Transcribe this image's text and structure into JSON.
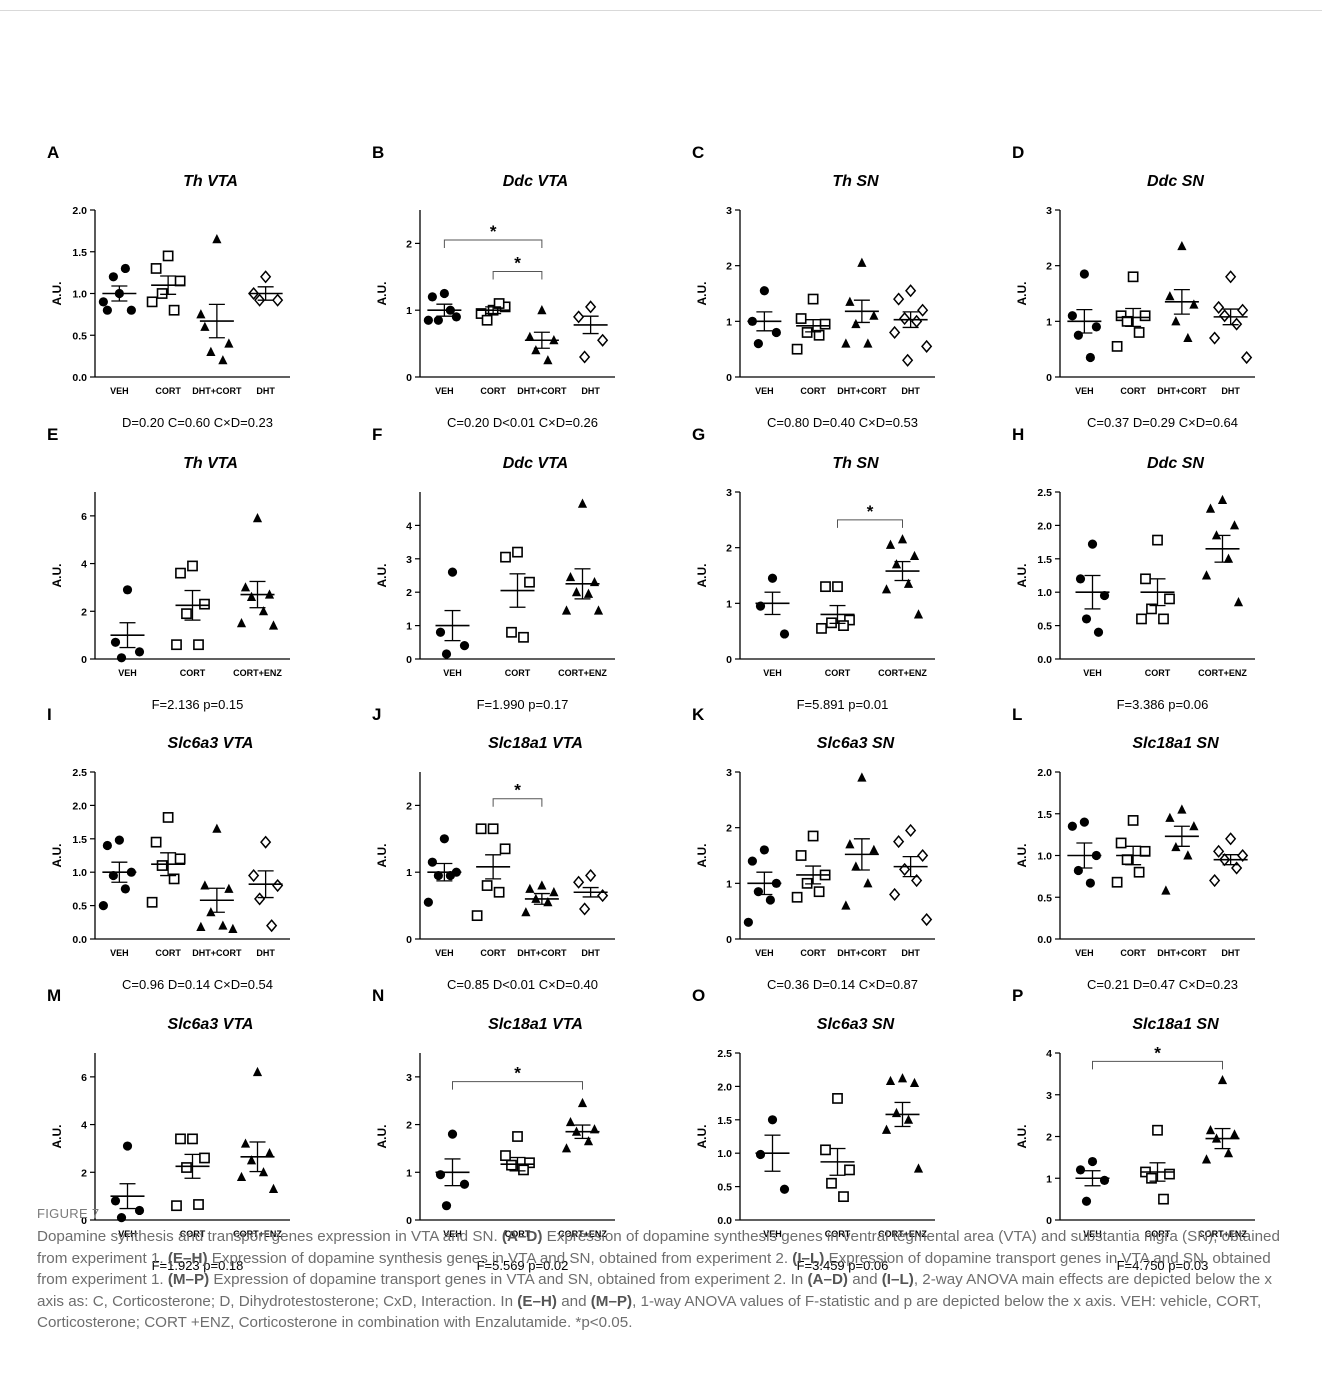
{
  "caption": {
    "label": "FIGURE 7",
    "parts": [
      {
        "t": "Dopamine synthesis and transport genes expression in VTA and SN. ",
        "b": false
      },
      {
        "t": "(A–D)",
        "b": true
      },
      {
        "t": " Expression of dopamine synthesis genes in ventral tegmental area (VTA) and substantia nigra (SN), obtained from experiment 1. ",
        "b": false
      },
      {
        "t": "(E–H)",
        "b": true
      },
      {
        "t": " Expression of dopamine synthesis genes in VTA and SN, obtained from experiment 2. ",
        "b": false
      },
      {
        "t": "(I–L)",
        "b": true
      },
      {
        "t": " Expression of dopamine transport genes in VTA and SN, obtained from experiment 1. ",
        "b": false
      },
      {
        "t": "(M–P)",
        "b": true
      },
      {
        "t": " Expression of dopamine transport genes in VTA and SN, obtained from experiment 2. In ",
        "b": false
      },
      {
        "t": "(A–D)",
        "b": true
      },
      {
        "t": " and ",
        "b": false
      },
      {
        "t": "(I–L)",
        "b": true
      },
      {
        "t": ", 2-way ANOVA main effects are depicted below the x axis as: C, Corticosterone; D, Dihydrotestosterone; CxD, Interaction. In ",
        "b": false
      },
      {
        "t": "(E–H)",
        "b": true
      },
      {
        "t": " and ",
        "b": false
      },
      {
        "t": "(M–P)",
        "b": true
      },
      {
        "t": ", 1-way ANOVA values of F-statistic and p are depicted below the x axis. VEH: vehicle, CORT, Corticosterone; CORT +ENZ, Corticosterone in combination with Enzalutamide. *p<0.05.",
        "b": false
      }
    ]
  },
  "chart_data": [
    {
      "panel": "A",
      "type": "scatter",
      "title": "Th VTA",
      "ylabel": "A.U.",
      "ylim": [
        0,
        2.0
      ],
      "yticks": [
        "0.0",
        "0.5",
        "1.0",
        "1.5",
        "2.0"
      ],
      "categories": [
        "VEH",
        "CORT",
        "DHT+CORT",
        "DHT"
      ],
      "markers": [
        "circle",
        "square",
        "triangle",
        "diamond"
      ],
      "points": [
        [
          1.0,
          0.8,
          0.8,
          1.2,
          1.3,
          0.9
        ],
        [
          1.45,
          1.3,
          1.15,
          1.0,
          0.8,
          0.9
        ],
        [
          1.65,
          0.6,
          0.4,
          0.3,
          0.2,
          0.75
        ],
        [
          1.2,
          1.0,
          0.92,
          0.92
        ]
      ],
      "mean": [
        1.0,
        1.1,
        0.67,
        1.0
      ],
      "sem": [
        [
          0.09,
          0.11,
          0.2,
          0.08
        ]
      ],
      "stats": "D=0.20 C=0.60 C×D=0.23",
      "sig": []
    },
    {
      "panel": "B",
      "type": "scatter",
      "title": "Ddc VTA",
      "ylabel": "A.U.",
      "ylim": [
        0,
        2.5
      ],
      "yticks": [
        "0",
        "1",
        "2"
      ],
      "categories": [
        "VEH",
        "CORT",
        "DHT+CORT",
        "DHT"
      ],
      "markers": [
        "circle",
        "square",
        "triangle",
        "diamond"
      ],
      "points": [
        [
          1.25,
          1.2,
          0.9,
          0.85,
          1.0,
          0.85
        ],
        [
          1.0,
          0.95,
          1.05,
          0.85,
          1.1
        ],
        [
          1.0,
          0.6,
          0.55,
          0.4,
          0.25
        ],
        [
          1.05,
          0.9,
          0.55,
          0.3
        ]
      ],
      "mean": [
        1.0,
        1.0,
        0.55,
        0.78
      ],
      "sem": [
        [
          0.09,
          0.05,
          0.12,
          0.13
        ]
      ],
      "stats": "C=0.20 D<0.01 C×D=0.26",
      "sig": [
        [
          0,
          2,
          2.05
        ],
        [
          1,
          2,
          1.58
        ]
      ]
    },
    {
      "panel": "C",
      "type": "scatter",
      "title": "Th SN",
      "ylabel": "A.U.",
      "ylim": [
        0,
        3
      ],
      "yticks": [
        "0",
        "1",
        "2",
        "3"
      ],
      "categories": [
        "VEH",
        "CORT",
        "DHT+CORT",
        "DHT"
      ],
      "markers": [
        "circle",
        "square",
        "triangle",
        "diamond"
      ],
      "points": [
        [
          1.55,
          1.0,
          0.8,
          0.6
        ],
        [
          1.4,
          1.05,
          0.95,
          0.8,
          0.75,
          0.5
        ],
        [
          2.05,
          1.35,
          1.1,
          0.95,
          0.6,
          0.6
        ],
        [
          1.55,
          1.4,
          1.2,
          1.05,
          1.0,
          0.8,
          0.55,
          0.3
        ]
      ],
      "mean": [
        1.0,
        0.92,
        1.18,
        1.03
      ],
      "sem": [
        [
          0.17,
          0.11,
          0.2,
          0.14
        ]
      ],
      "stats": "C=0.80 D=0.40 C×D=0.53",
      "sig": []
    },
    {
      "panel": "D",
      "type": "scatter",
      "title": "Ddc SN",
      "ylabel": "A.U.",
      "ylim": [
        0,
        3
      ],
      "yticks": [
        "0",
        "1",
        "2",
        "3"
      ],
      "categories": [
        "VEH",
        "CORT",
        "DHT+CORT",
        "DHT"
      ],
      "markers": [
        "circle",
        "square",
        "triangle",
        "diamond"
      ],
      "points": [
        [
          1.85,
          1.1,
          0.9,
          0.75,
          0.35
        ],
        [
          1.8,
          1.1,
          1.1,
          1.0,
          0.8,
          0.55
        ],
        [
          2.35,
          1.45,
          1.3,
          1.0,
          0.7
        ],
        [
          1.8,
          1.25,
          1.2,
          1.1,
          0.95,
          0.7,
          0.35
        ]
      ],
      "mean": [
        1.0,
        1.07,
        1.35,
        1.08
      ],
      "sem": [
        [
          0.21,
          0.16,
          0.22,
          0.14
        ]
      ],
      "stats": "C=0.37 D=0.29 C×D=0.64",
      "sig": []
    },
    {
      "panel": "E",
      "type": "scatter",
      "title": "Th VTA",
      "ylabel": "A.U.",
      "ylim": [
        0,
        7
      ],
      "yticks": [
        "0",
        "2",
        "4",
        "6"
      ],
      "categories": [
        "VEH",
        "CORT",
        "CORT+ENZ"
      ],
      "markers": [
        "circle",
        "square",
        "triangle"
      ],
      "points": [
        [
          2.9,
          0.7,
          0.3,
          0.05
        ],
        [
          3.9,
          3.6,
          2.3,
          1.9,
          0.6,
          0.6
        ],
        [
          5.9,
          3.0,
          2.7,
          2.6,
          2.0,
          1.5,
          1.4
        ]
      ],
      "mean": [
        1.0,
        2.25,
        2.7
      ],
      "sem": [
        [
          0.52,
          0.62,
          0.55
        ]
      ],
      "stats": "F=2.136 p=0.15",
      "sig": []
    },
    {
      "panel": "F",
      "type": "scatter",
      "title": "Ddc VTA",
      "ylabel": "A.U.",
      "ylim": [
        0,
        5
      ],
      "yticks": [
        "0",
        "1",
        "2",
        "3",
        "4"
      ],
      "categories": [
        "VEH",
        "CORT",
        "CORT+ENZ"
      ],
      "markers": [
        "circle",
        "square",
        "triangle"
      ],
      "points": [
        [
          2.6,
          0.8,
          0.4,
          0.15
        ],
        [
          3.2,
          3.05,
          2.3,
          0.8,
          0.65
        ],
        [
          4.65,
          2.45,
          2.3,
          2.0,
          1.95,
          1.45,
          1.45
        ]
      ],
      "mean": [
        1.0,
        2.05,
        2.25
      ],
      "sem": [
        [
          0.45,
          0.5,
          0.45
        ]
      ],
      "stats": "F=1.990 p=0.17",
      "sig": []
    },
    {
      "panel": "G",
      "type": "scatter",
      "title": "Th SN",
      "ylabel": "A.U.",
      "ylim": [
        0,
        3
      ],
      "yticks": [
        "0",
        "1",
        "2",
        "3"
      ],
      "categories": [
        "VEH",
        "CORT",
        "CORT+ENZ"
      ],
      "markers": [
        "circle",
        "square",
        "triangle"
      ],
      "points": [
        [
          1.45,
          0.95,
          0.45
        ],
        [
          1.3,
          1.3,
          0.7,
          0.65,
          0.6,
          0.55
        ],
        [
          2.15,
          2.05,
          1.85,
          1.7,
          1.35,
          1.25,
          0.8
        ]
      ],
      "mean": [
        1.0,
        0.8,
        1.58
      ],
      "sem": [
        [
          0.2,
          0.16,
          0.17
        ]
      ],
      "stats": "F=5.891 p=0.01",
      "sig": [
        [
          1,
          2,
          2.5
        ]
      ]
    },
    {
      "panel": "H",
      "type": "scatter",
      "title": "Ddc SN",
      "ylabel": "A.U.",
      "ylim": [
        0,
        2.5
      ],
      "yticks": [
        "0.0",
        "0.5",
        "1.0",
        "1.5",
        "2.0",
        "2.5"
      ],
      "categories": [
        "VEH",
        "CORT",
        "CORT+ENZ"
      ],
      "markers": [
        "circle",
        "square",
        "triangle"
      ],
      "points": [
        [
          1.72,
          1.2,
          0.95,
          0.6,
          0.4
        ],
        [
          1.78,
          1.2,
          0.9,
          0.75,
          0.6,
          0.6
        ],
        [
          2.38,
          2.25,
          2.0,
          1.85,
          1.5,
          1.25,
          0.85
        ]
      ],
      "mean": [
        1.0,
        1.0,
        1.65
      ],
      "sem": [
        [
          0.25,
          0.2,
          0.2
        ]
      ],
      "stats": "F=3.386 p=0.06",
      "sig": []
    },
    {
      "panel": "I",
      "type": "scatter",
      "title": "Slc6a3 VTA",
      "ylabel": "A.U.",
      "ylim": [
        0,
        2.5
      ],
      "yticks": [
        "0.0",
        "0.5",
        "1.0",
        "1.5",
        "2.0",
        "2.5"
      ],
      "categories": [
        "VEH",
        "CORT",
        "DHT+CORT",
        "DHT"
      ],
      "markers": [
        "circle",
        "square",
        "triangle",
        "diamond"
      ],
      "points": [
        [
          1.48,
          1.4,
          1.0,
          0.95,
          0.75,
          0.5
        ],
        [
          1.82,
          1.45,
          1.2,
          1.1,
          0.9,
          0.55
        ],
        [
          1.65,
          0.8,
          0.75,
          0.4,
          0.2,
          0.18,
          0.15
        ],
        [
          1.45,
          0.95,
          0.8,
          0.6,
          0.2
        ]
      ],
      "mean": [
        1.0,
        1.12,
        0.58,
        0.82
      ],
      "sem": [
        [
          0.15,
          0.17,
          0.18,
          0.2
        ]
      ],
      "stats": "C=0.96 D=0.14 C×D=0.54",
      "sig": []
    },
    {
      "panel": "J",
      "type": "scatter",
      "title": "Slc18a1 VTA",
      "ylabel": "A.U.",
      "ylim": [
        0,
        2.5
      ],
      "yticks": [
        "0",
        "1",
        "2"
      ],
      "categories": [
        "VEH",
        "CORT",
        "DHT+CORT",
        "DHT"
      ],
      "markers": [
        "circle",
        "square",
        "triangle",
        "diamond"
      ],
      "points": [
        [
          1.5,
          1.15,
          1.0,
          0.95,
          0.95,
          0.55
        ],
        [
          1.65,
          1.65,
          1.35,
          0.8,
          0.7,
          0.35
        ],
        [
          0.8,
          0.75,
          0.7,
          0.6,
          0.55,
          0.4
        ],
        [
          0.95,
          0.85,
          0.65,
          0.45
        ]
      ],
      "mean": [
        1.0,
        1.08,
        0.6,
        0.7
      ],
      "sem": [
        [
          0.13,
          0.18,
          0.08,
          0.07
        ]
      ],
      "stats": "C=0.85 D<0.01 C×D=0.40",
      "sig": [
        [
          1,
          2,
          2.1
        ]
      ]
    },
    {
      "panel": "K",
      "type": "scatter",
      "title": "Slc6a3 SN",
      "ylabel": "A.U.",
      "ylim": [
        0,
        3
      ],
      "yticks": [
        "0",
        "1",
        "2",
        "3"
      ],
      "categories": [
        "VEH",
        "CORT",
        "DHT+CORT",
        "DHT"
      ],
      "markers": [
        "circle",
        "square",
        "triangle",
        "diamond"
      ],
      "points": [
        [
          1.6,
          1.4,
          1.0,
          0.85,
          0.7,
          0.3
        ],
        [
          1.85,
          1.5,
          1.15,
          1.0,
          0.85,
          0.75
        ],
        [
          2.9,
          1.7,
          1.6,
          1.3,
          1.0,
          0.6
        ],
        [
          1.95,
          1.75,
          1.5,
          1.25,
          1.05,
          0.8,
          0.35
        ]
      ],
      "mean": [
        1.0,
        1.15,
        1.52,
        1.3
      ],
      "sem": [
        [
          0.2,
          0.16,
          0.28,
          0.18
        ]
      ],
      "stats": "C=0.36 D=0.14 C×D=0.87",
      "sig": []
    },
    {
      "panel": "L",
      "type": "scatter",
      "title": "Slc18a1 SN",
      "ylabel": "A.U.",
      "ylim": [
        0,
        2.0
      ],
      "yticks": [
        "0.0",
        "0.5",
        "1.0",
        "1.5",
        "2.0"
      ],
      "categories": [
        "VEH",
        "CORT",
        "DHT+CORT",
        "DHT"
      ],
      "markers": [
        "circle",
        "square",
        "triangle",
        "diamond"
      ],
      "points": [
        [
          1.4,
          1.35,
          1.0,
          0.82,
          0.67
        ],
        [
          1.42,
          1.15,
          1.05,
          0.95,
          0.8,
          0.68
        ],
        [
          1.55,
          1.45,
          1.35,
          1.1,
          1.0,
          0.58
        ],
        [
          1.2,
          1.05,
          1.0,
          0.95,
          0.85,
          0.7
        ]
      ],
      "mean": [
        1.0,
        1.0,
        1.23,
        0.95
      ],
      "sem": [
        [
          0.15,
          0.11,
          0.12,
          0.06
        ]
      ],
      "stats": "C=0.21 D=0.47 C×D=0.23",
      "sig": []
    },
    {
      "panel": "M",
      "type": "scatter",
      "title": "Slc6a3 VTA",
      "ylabel": "A.U.",
      "ylim": [
        0,
        7
      ],
      "yticks": [
        "0",
        "2",
        "4",
        "6"
      ],
      "categories": [
        "VEH",
        "CORT",
        "CORT+ENZ"
      ],
      "markers": [
        "circle",
        "square",
        "triangle"
      ],
      "points": [
        [
          3.1,
          0.8,
          0.4,
          0.1
        ],
        [
          3.4,
          3.4,
          2.6,
          2.2,
          0.65,
          0.6
        ],
        [
          6.2,
          3.2,
          2.8,
          2.5,
          2.0,
          1.8,
          1.3
        ]
      ],
      "mean": [
        1.0,
        2.25,
        2.65
      ],
      "sem": [
        [
          0.52,
          0.5,
          0.62
        ]
      ],
      "stats": "F=1.923 p=0.18",
      "sig": []
    },
    {
      "panel": "N",
      "type": "scatter",
      "title": "Slc18a1 VTA",
      "ylabel": "A.U.",
      "ylim": [
        0,
        3.5
      ],
      "yticks": [
        "0",
        "1",
        "2",
        "3"
      ],
      "categories": [
        "VEH",
        "CORT",
        "CORT+ENZ"
      ],
      "markers": [
        "circle",
        "square",
        "triangle"
      ],
      "points": [
        [
          1.8,
          0.95,
          0.75,
          0.3
        ],
        [
          1.75,
          1.35,
          1.2,
          1.15,
          1.05
        ],
        [
          2.45,
          2.05,
          1.9,
          1.85,
          1.65,
          1.5
        ]
      ],
      "mean": [
        1.0,
        1.17,
        1.85
      ],
      "sem": [
        [
          0.28,
          0.14,
          0.14
        ]
      ],
      "stats": "F=5.569 p=0.02",
      "sig": [
        [
          0,
          2,
          2.9
        ]
      ]
    },
    {
      "panel": "O",
      "type": "scatter",
      "title": "Slc6a3 SN",
      "ylabel": "A.U.",
      "ylim": [
        0,
        2.5
      ],
      "yticks": [
        "0.0",
        "0.5",
        "1.0",
        "1.5",
        "2.0",
        "2.5"
      ],
      "categories": [
        "VEH",
        "CORT",
        "CORT+ENZ"
      ],
      "markers": [
        "circle",
        "square",
        "triangle"
      ],
      "points": [
        [
          1.5,
          0.98,
          0.46
        ],
        [
          1.82,
          1.05,
          0.75,
          0.55,
          0.35
        ],
        [
          2.12,
          2.08,
          2.05,
          1.6,
          1.5,
          1.35,
          0.77
        ]
      ],
      "mean": [
        1.0,
        0.87,
        1.58
      ],
      "sem": [
        [
          0.27,
          0.2,
          0.18
        ]
      ],
      "stats": "F=3.459 p=0.06",
      "sig": []
    },
    {
      "panel": "P",
      "type": "scatter",
      "title": "Slc18a1 SN",
      "ylabel": "A.U.",
      "ylim": [
        0,
        4
      ],
      "yticks": [
        "0",
        "1",
        "2",
        "3",
        "4"
      ],
      "categories": [
        "VEH",
        "CORT",
        "CORT+ENZ"
      ],
      "markers": [
        "circle",
        "square",
        "triangle"
      ],
      "points": [
        [
          1.4,
          1.2,
          0.95,
          0.45
        ],
        [
          2.15,
          1.15,
          1.1,
          1.0,
          0.5
        ],
        [
          3.35,
          2.15,
          2.05,
          1.95,
          1.6,
          1.45
        ]
      ],
      "mean": [
        1.0,
        1.15,
        1.95
      ],
      "sem": [
        [
          0.18,
          0.22,
          0.24
        ]
      ],
      "stats": "F=4.750 p=0.03",
      "sig": [
        [
          0,
          2,
          3.8
        ]
      ]
    }
  ]
}
